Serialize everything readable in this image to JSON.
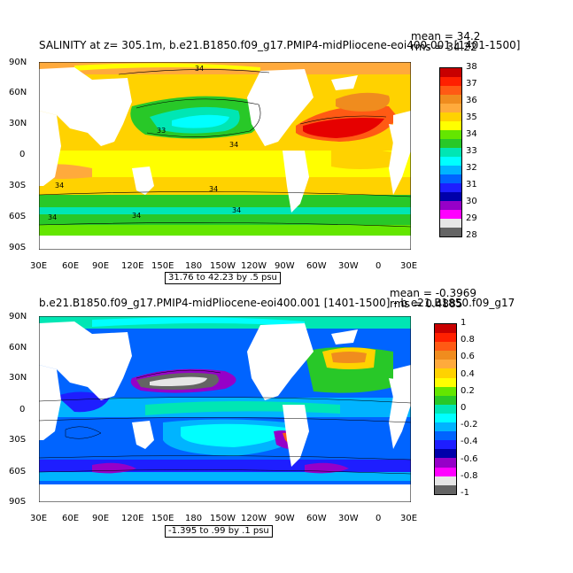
{
  "panels": [
    {
      "title": "SALINITY at z= 305.1m, b.e21.B1850.f09_g17.PMIP4-midPliocene-eoi400.001 [1401-1500]",
      "stat_mean": "mean = 34.2",
      "stat_rms": "rms = 34.22",
      "range_note": "31.76 to 42.23 by .5 psu",
      "lat_ticks": [
        "90N",
        "60N",
        "30N",
        "0",
        "30S",
        "60S",
        "90S"
      ],
      "lon_ticks": [
        "30E",
        "60E",
        "90E",
        "120E",
        "150E",
        "180",
        "150W",
        "120W",
        "90W",
        "60W",
        "30W",
        "0",
        "30E"
      ],
      "contour_labels": [
        "34",
        "33",
        "34",
        "34",
        "34",
        "34",
        "34",
        "34"
      ],
      "colorbar": {
        "labels": [
          "38",
          "37",
          "36",
          "35",
          "34",
          "33",
          "32",
          "31",
          "30",
          "29",
          "28"
        ],
        "colors": [
          "#c80000",
          "#ff2000",
          "#ff5a14",
          "#f08c1e",
          "#ffaa3c",
          "#ffd200",
          "#ffff00",
          "#64e600",
          "#28c828",
          "#00e6b4",
          "#00ffff",
          "#00b4ff",
          "#0064ff",
          "#1e1eff",
          "#0000aa",
          "#9600c8",
          "#ff00ff",
          "#e6e6e6",
          "#646464"
        ]
      }
    },
    {
      "title": "b.e21.B1850.f09_g17.PMIP4-midPliocene-eoi400.001 [1401-1500] - b.e21.B1850.f09_g17",
      "stat_mean": "mean = -0.3969",
      "stat_rms": "rms = 0.4885",
      "range_note": "-1.395 to .99 by .1 psu",
      "lat_ticks": [
        "90N",
        "60N",
        "30N",
        "0",
        "30S",
        "60S",
        "90S"
      ],
      "lon_ticks": [
        "30E",
        "60E",
        "90E",
        "120E",
        "150E",
        "180",
        "150W",
        "120W",
        "90W",
        "60W",
        "30W",
        "0",
        "30E"
      ],
      "colorbar": {
        "labels": [
          "1",
          "0.8",
          "0.6",
          "0.4",
          "0.2",
          "0",
          "-0.2",
          "-0.4",
          "-0.6",
          "-0.8",
          "-1"
        ],
        "colors": [
          "#c80000",
          "#ff2000",
          "#ff5a14",
          "#f08c1e",
          "#ffaa3c",
          "#ffd200",
          "#ffff00",
          "#64e600",
          "#28c828",
          "#00e6b4",
          "#00ffff",
          "#00b4ff",
          "#0064ff",
          "#1e1eff",
          "#0000aa",
          "#9600c8",
          "#ff00ff",
          "#e6e6e6",
          "#646464"
        ]
      }
    }
  ]
}
